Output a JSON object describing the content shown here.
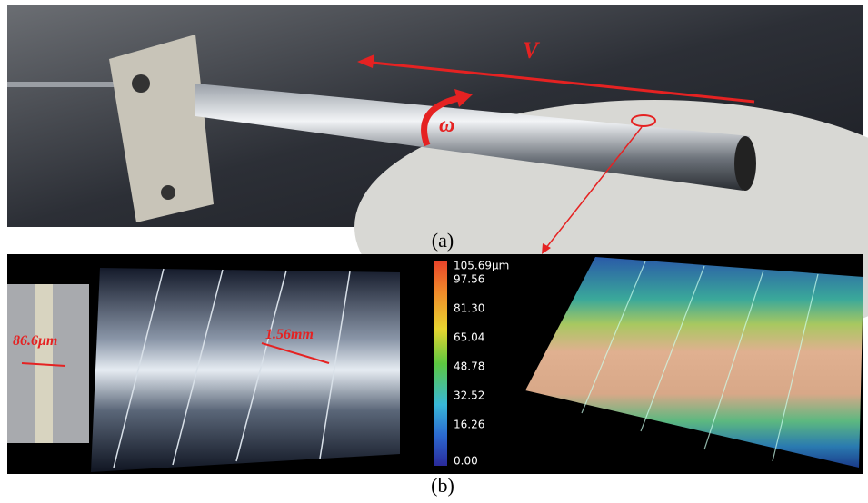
{
  "panel_a": {
    "velocity_label": "V",
    "rotation_label": "ω",
    "caption": "(a)"
  },
  "panel_b": {
    "groove_width_label": "86.6μm",
    "spacing_label": "1.56mm",
    "colorbar_labels": [
      "105.69μm",
      "97.56",
      "81.30",
      "65.04",
      "48.78",
      "32.52",
      "16.26",
      "0.00"
    ],
    "caption": "(b)"
  }
}
